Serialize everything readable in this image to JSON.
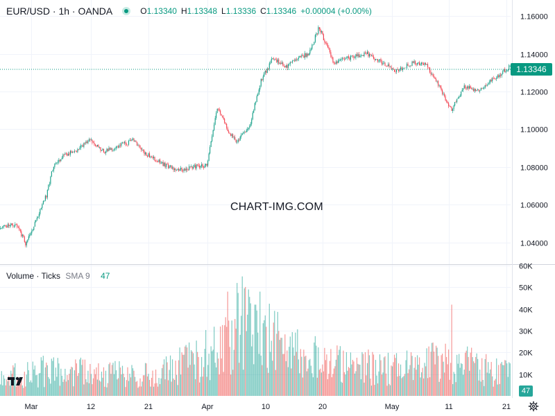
{
  "header": {
    "symbol": "EUR/USD · 1h · OANDA",
    "open_label": "O",
    "open": "1.13340",
    "high_label": "H",
    "high": "1.13348",
    "low_label": "L",
    "low": "1.13336",
    "close_label": "C",
    "close": "1.13346",
    "change": "+0.00004 (+0.00%)"
  },
  "volume_legend": {
    "title": "Volume · Ticks",
    "sma": "SMA 9",
    "value": "47"
  },
  "watermark": "CHART-IMG.COM",
  "last_price_tag": "1.13346",
  "volume_tag": "47",
  "colors": {
    "up": "#089981",
    "down": "#f23645",
    "vol_up": "#26a69a",
    "vol_down": "#ef5350",
    "price_line": "#089981"
  },
  "chart_data": {
    "type": "candlestick",
    "title": "EUR/USD · 1h · OANDA",
    "price_axis": {
      "ticks": [
        "1.16000",
        "1.14000",
        "1.12000",
        "1.10000",
        "1.08000",
        "1.06000",
        "1.04000"
      ],
      "range": [
        1.0285,
        1.1685
      ]
    },
    "volume_axis": {
      "ticks": [
        "60K",
        "50K",
        "40K",
        "30K",
        "20K",
        "10K"
      ],
      "range": [
        0,
        60000
      ]
    },
    "x_axis": {
      "ticks": [
        "Mar",
        "12",
        "21",
        "Apr",
        "10",
        "20",
        "May",
        "11",
        "21"
      ]
    },
    "price_path": [
      {
        "t": 0,
        "p": 1.047
      },
      {
        "t": 0.02,
        "p": 1.05
      },
      {
        "t": 0.035,
        "p": 1.048
      },
      {
        "t": 0.05,
        "p": 1.039
      },
      {
        "t": 0.065,
        "p": 1.048
      },
      {
        "t": 0.09,
        "p": 1.065
      },
      {
        "t": 0.105,
        "p": 1.082
      },
      {
        "t": 0.13,
        "p": 1.087
      },
      {
        "t": 0.15,
        "p": 1.089
      },
      {
        "t": 0.175,
        "p": 1.094
      },
      {
        "t": 0.205,
        "p": 1.088
      },
      {
        "t": 0.24,
        "p": 1.092
      },
      {
        "t": 0.26,
        "p": 1.094
      },
      {
        "t": 0.28,
        "p": 1.088
      },
      {
        "t": 0.31,
        "p": 1.083
      },
      {
        "t": 0.345,
        "p": 1.078
      },
      {
        "t": 0.38,
        "p": 1.08
      },
      {
        "t": 0.405,
        "p": 1.081
      },
      {
        "t": 0.425,
        "p": 1.112
      },
      {
        "t": 0.445,
        "p": 1.1
      },
      {
        "t": 0.465,
        "p": 1.093
      },
      {
        "t": 0.49,
        "p": 1.103
      },
      {
        "t": 0.51,
        "p": 1.125
      },
      {
        "t": 0.535,
        "p": 1.138
      },
      {
        "t": 0.56,
        "p": 1.133
      },
      {
        "t": 0.585,
        "p": 1.138
      },
      {
        "t": 0.605,
        "p": 1.14
      },
      {
        "t": 0.625,
        "p": 1.154
      },
      {
        "t": 0.655,
        "p": 1.135
      },
      {
        "t": 0.685,
        "p": 1.138
      },
      {
        "t": 0.72,
        "p": 1.14
      },
      {
        "t": 0.745,
        "p": 1.136
      },
      {
        "t": 0.775,
        "p": 1.131
      },
      {
        "t": 0.81,
        "p": 1.135
      },
      {
        "t": 0.835,
        "p": 1.134
      },
      {
        "t": 0.86,
        "p": 1.123
      },
      {
        "t": 0.885,
        "p": 1.11
      },
      {
        "t": 0.91,
        "p": 1.123
      },
      {
        "t": 0.94,
        "p": 1.12
      },
      {
        "t": 0.965,
        "p": 1.126
      },
      {
        "t": 1.0,
        "p": 1.13346
      }
    ],
    "volume_profile": [
      {
        "t": 0,
        "v": 8000
      },
      {
        "t": 0.1,
        "v": 12000
      },
      {
        "t": 0.3,
        "v": 9000
      },
      {
        "t": 0.42,
        "v": 20000
      },
      {
        "t": 0.47,
        "v": 32000
      },
      {
        "t": 0.52,
        "v": 28000
      },
      {
        "t": 0.6,
        "v": 18000
      },
      {
        "t": 0.75,
        "v": 12000
      },
      {
        "t": 0.87,
        "v": 16000
      },
      {
        "t": 1.0,
        "v": 10000
      }
    ],
    "volume_peaks": [
      {
        "t": 0.445,
        "v": 48000
      },
      {
        "t": 0.465,
        "v": 52000
      },
      {
        "t": 0.475,
        "v": 55000
      },
      {
        "t": 0.51,
        "v": 48000
      },
      {
        "t": 0.5,
        "v": 42000
      },
      {
        "t": 0.885,
        "v": 42000
      }
    ],
    "last": {
      "open": 1.1334,
      "high": 1.13348,
      "low": 1.13336,
      "close": 1.13346,
      "volume": 47
    }
  }
}
